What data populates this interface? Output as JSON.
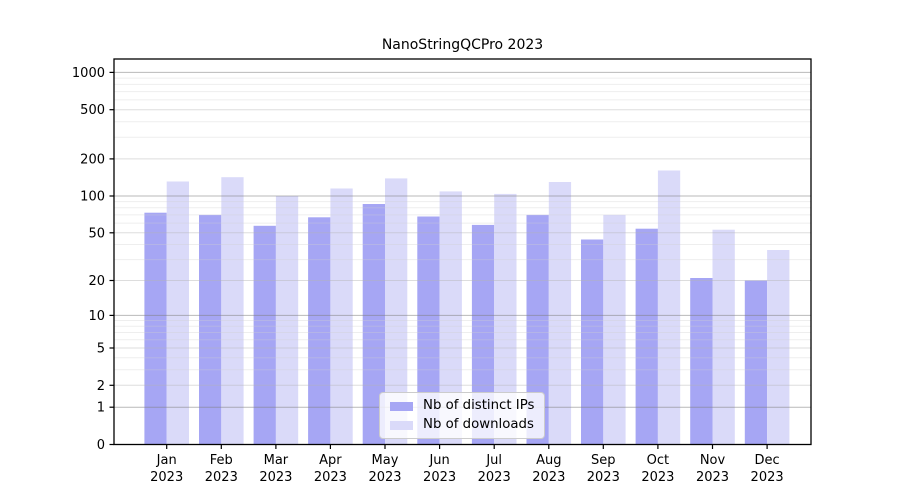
{
  "chart_data": {
    "type": "bar",
    "title": "NanoStringQCPro 2023",
    "scale": "log1p",
    "grid": true,
    "xlabel": "",
    "ylabel": "",
    "yticks": [
      0,
      1,
      2,
      5,
      10,
      20,
      50,
      100,
      200,
      500,
      1000
    ],
    "ylim": [
      0,
      1290
    ],
    "legend_position": "lower center",
    "categories": [
      {
        "month": "Jan",
        "year": "2023"
      },
      {
        "month": "Feb",
        "year": "2023"
      },
      {
        "month": "Mar",
        "year": "2023"
      },
      {
        "month": "Apr",
        "year": "2023"
      },
      {
        "month": "May",
        "year": "2023"
      },
      {
        "month": "Jun",
        "year": "2023"
      },
      {
        "month": "Jul",
        "year": "2023"
      },
      {
        "month": "Aug",
        "year": "2023"
      },
      {
        "month": "Sep",
        "year": "2023"
      },
      {
        "month": "Oct",
        "year": "2023"
      },
      {
        "month": "Nov",
        "year": "2023"
      },
      {
        "month": "Dec",
        "year": "2023"
      }
    ],
    "series": [
      {
        "name": "Nb of distinct IPs",
        "color": "#a6a6f4",
        "values": [
          73,
          70,
          57,
          67,
          86,
          68,
          58,
          70,
          44,
          54,
          21,
          20
        ]
      },
      {
        "name": "Nb of downloads",
        "color": "#dadaf9",
        "values": [
          131,
          142,
          100,
          115,
          139,
          109,
          104,
          130,
          70,
          161,
          53,
          36
        ]
      }
    ],
    "colors": {
      "frame": "#000000",
      "grid_major": "rgba(128,128,128,0.55)",
      "grid_mid": "rgba(180,180,180,0.45)",
      "grid_minor": "rgba(205,205,205,0.35)",
      "tick_text": "#000000"
    }
  }
}
